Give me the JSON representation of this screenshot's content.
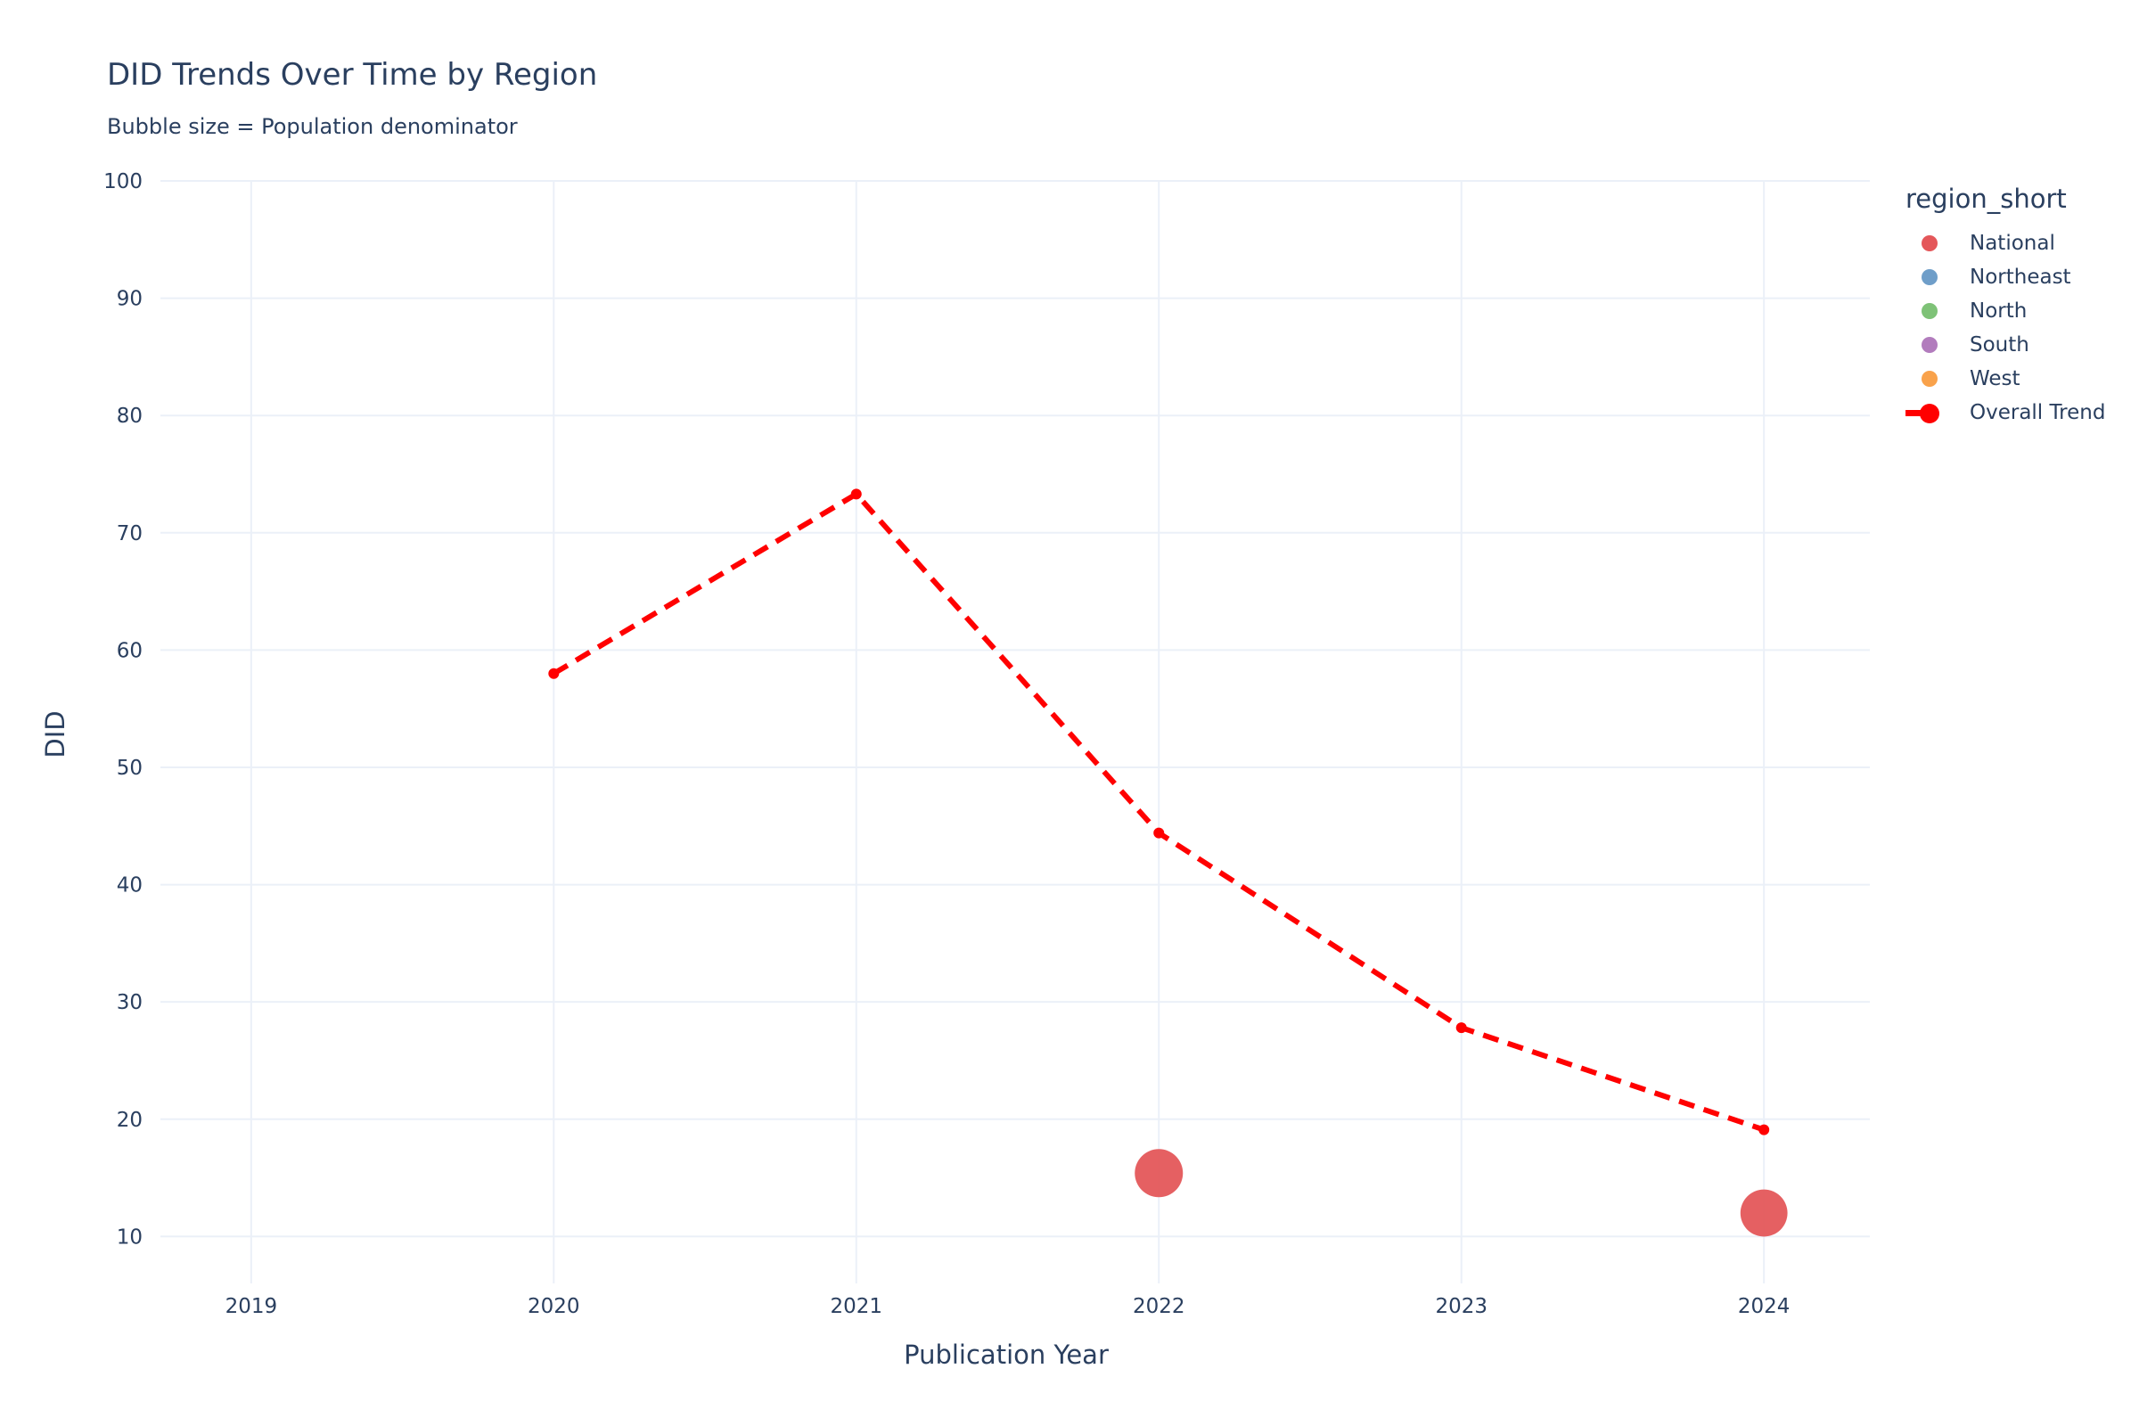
{
  "chart_data": {
    "type": "scatter",
    "title": "DID Trends Over Time by Region",
    "subtitle": "Bubble size = Population denominator",
    "xlabel": "Publication Year",
    "ylabel": "DID",
    "xlim": [
      2018.7,
      2024.35
    ],
    "ylim": [
      6,
      100
    ],
    "x_ticks": [
      2019,
      2020,
      2021,
      2022,
      2023,
      2024
    ],
    "y_ticks": [
      10,
      20,
      30,
      40,
      50,
      60,
      70,
      80,
      90,
      100
    ],
    "grid": true,
    "legend_title": "region_short",
    "legend_position": "right",
    "legend": [
      {
        "name": "National",
        "color": "#e4575a",
        "kind": "marker"
      },
      {
        "name": "Northeast",
        "color": "#6f9ec9",
        "kind": "marker"
      },
      {
        "name": "North",
        "color": "#7ec277",
        "kind": "marker"
      },
      {
        "name": "South",
        "color": "#b27cbd",
        "kind": "marker"
      },
      {
        "name": "West",
        "color": "#f9a24b",
        "kind": "marker"
      },
      {
        "name": "Overall Trend",
        "color": "#ff0000",
        "kind": "line"
      }
    ],
    "bubbles": [
      {
        "series": "National",
        "x": 2022,
        "y": 15.4,
        "size": 1.0
      },
      {
        "series": "National",
        "x": 2024,
        "y": 12.0,
        "size": 0.8
      }
    ],
    "trend": {
      "name": "Overall Trend",
      "color": "#ff0000",
      "x": [
        2020,
        2021,
        2022,
        2023,
        2024
      ],
      "y": [
        58.0,
        73.3,
        44.4,
        27.8,
        19.1
      ]
    }
  }
}
